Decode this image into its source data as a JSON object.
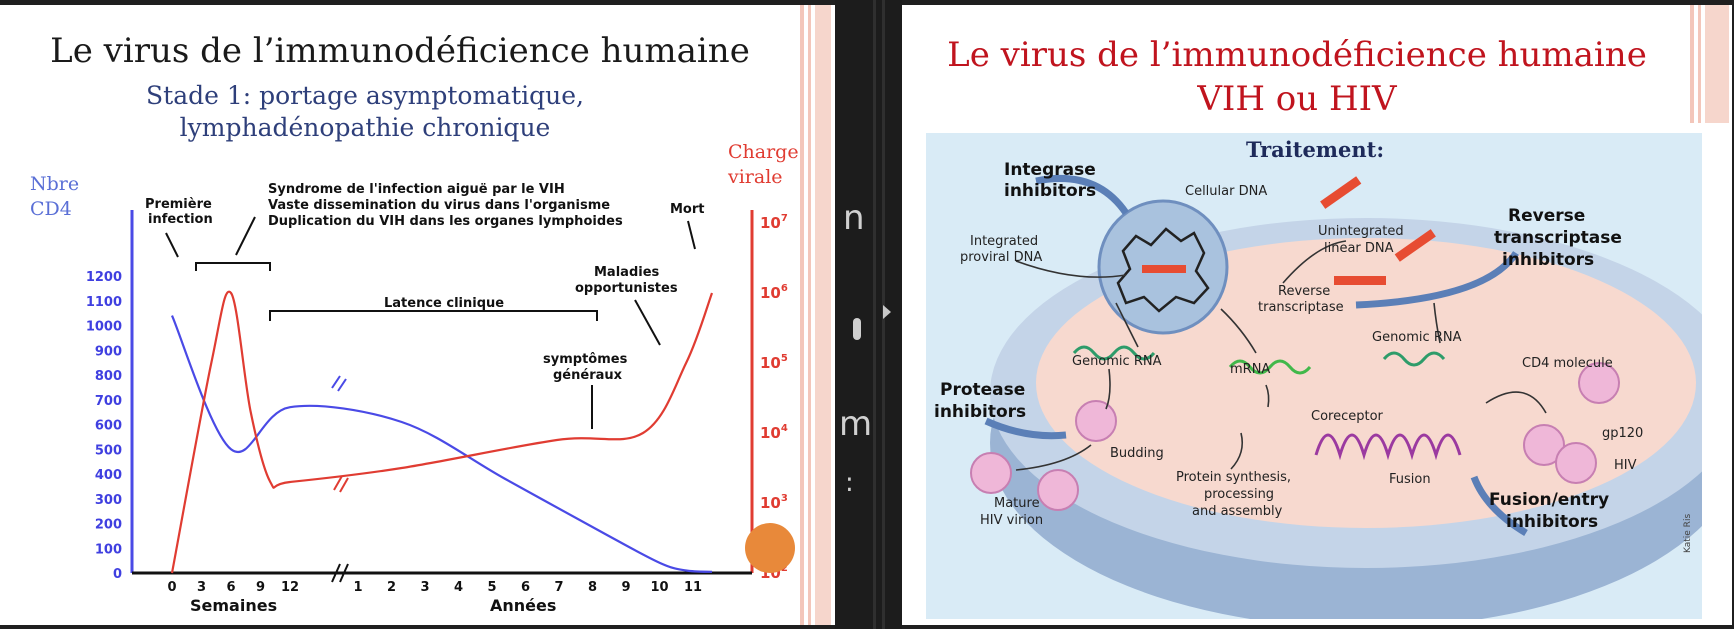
{
  "left_slide": {
    "title": "Le virus de l’immunodéficience humaine",
    "subtitle_line1": "Stade 1: portage asymptomatique,",
    "subtitle_line2": "lymphadénopathie chronique",
    "colors": {
      "cd4": "#4a4ae6",
      "viral": "#e03c32",
      "accent_dot": "#e8893a"
    }
  },
  "gap": {
    "char1": "n",
    "char2": "m",
    "char3": ":"
  },
  "right_slide": {
    "title_line1": "Le virus de l’immunodéficience humaine",
    "title_line2": "VIH ou HIV",
    "title_color": "#c0141e",
    "figure": {
      "heading": "Traitement:",
      "integrase1": "Integrase",
      "integrase2": "inhibitors",
      "cellular_dna": "Cellular DNA",
      "integrated1": "Integrated",
      "integrated2": "proviral DNA",
      "unintegrated1": "Unintegrated",
      "unintegrated2": "linear DNA",
      "rt_inh1": "Reverse",
      "rt_inh2": "transcriptase",
      "rt_inh3": "inhibitors",
      "rt1": "Reverse",
      "rt2": "transcriptase",
      "genomic_rna_right": "Genomic RNA",
      "genomic_rna_left": "Genomic RNA",
      "mrna": "mRNA",
      "cd4_molecule": "CD4 molecule",
      "protease1": "Protease",
      "protease2": "inhibitors",
      "coreceptor": "Coreceptor",
      "gp120": "gp120",
      "budding": "Budding",
      "protein1": "Protein synthesis,",
      "protein2": "processing",
      "protein3": "and assembly",
      "fusion": "Fusion",
      "hiv": "HIV",
      "mature1": "Mature",
      "mature2": "HIV virion",
      "fusion_inh1": "Fusion/entry",
      "fusion_inh2": "inhibitors",
      "credit": "Katie Ris"
    }
  },
  "chart_data": {
    "type": "line",
    "title": "",
    "left_axis_label_line1": "Nbre",
    "left_axis_label_line2": "CD4",
    "right_axis_label_line1": "Charge",
    "right_axis_label_line2": "virale",
    "left_axis_ticks": [
      0,
      100,
      200,
      300,
      400,
      500,
      600,
      700,
      800,
      900,
      1000,
      1100,
      1200
    ],
    "right_axis_ticks": [
      {
        "base": "10",
        "exp": "2"
      },
      {
        "base": "10",
        "exp": "3"
      },
      {
        "base": "10",
        "exp": "4"
      },
      {
        "base": "10",
        "exp": "5"
      },
      {
        "base": "10",
        "exp": "6"
      },
      {
        "base": "10",
        "exp": "7"
      }
    ],
    "x_ticks_weeks": [
      "0",
      "3",
      "6",
      "9",
      "12"
    ],
    "x_ticks_years": [
      "1",
      "2",
      "3",
      "4",
      "5",
      "6",
      "7",
      "8",
      "9",
      "10",
      "11"
    ],
    "x_label_weeks": "Semaines",
    "x_label_years": "Années",
    "annotations": {
      "first_infection_line1": "Première",
      "first_infection_line2": "infection",
      "syndrome_line1": "Syndrome de l'infection aiguë par le VIH",
      "syndrome_line2": "Vaste dissemination du virus dans l'organisme",
      "syndrome_line3": "Duplication du VIH dans les organes lymphoides",
      "death": "Mort",
      "latency": "Latence clinique",
      "diseases_line1": "Maladies",
      "diseases_line2": "opportunistes",
      "symptoms_line1": "symptômes",
      "symptoms_line2": "généraux"
    },
    "series": [
      {
        "name": "",
        "axis": "left",
        "points": [
          [
            0,
            1040
          ],
          [
            6,
            500
          ],
          [
            12,
            670
          ],
          [
            24,
            610
          ],
          [
            48,
            380
          ],
          [
            72,
            150
          ],
          [
            84,
            40
          ],
          [
            90,
            10
          ],
          [
            96,
            5
          ]
        ]
      },
      {
        "name": "",
        "axis": "right_log10",
        "points": [
          [
            0,
            2.0
          ],
          [
            4,
            5.0
          ],
          [
            6,
            6.0
          ],
          [
            8,
            4.3
          ],
          [
            10,
            3.3
          ],
          [
            12,
            3.3
          ],
          [
            24,
            3.5
          ],
          [
            60,
            3.9
          ],
          [
            80,
            4.0
          ],
          [
            90,
            5.0
          ],
          [
            96,
            6.0
          ]
        ]
      }
    ]
  }
}
